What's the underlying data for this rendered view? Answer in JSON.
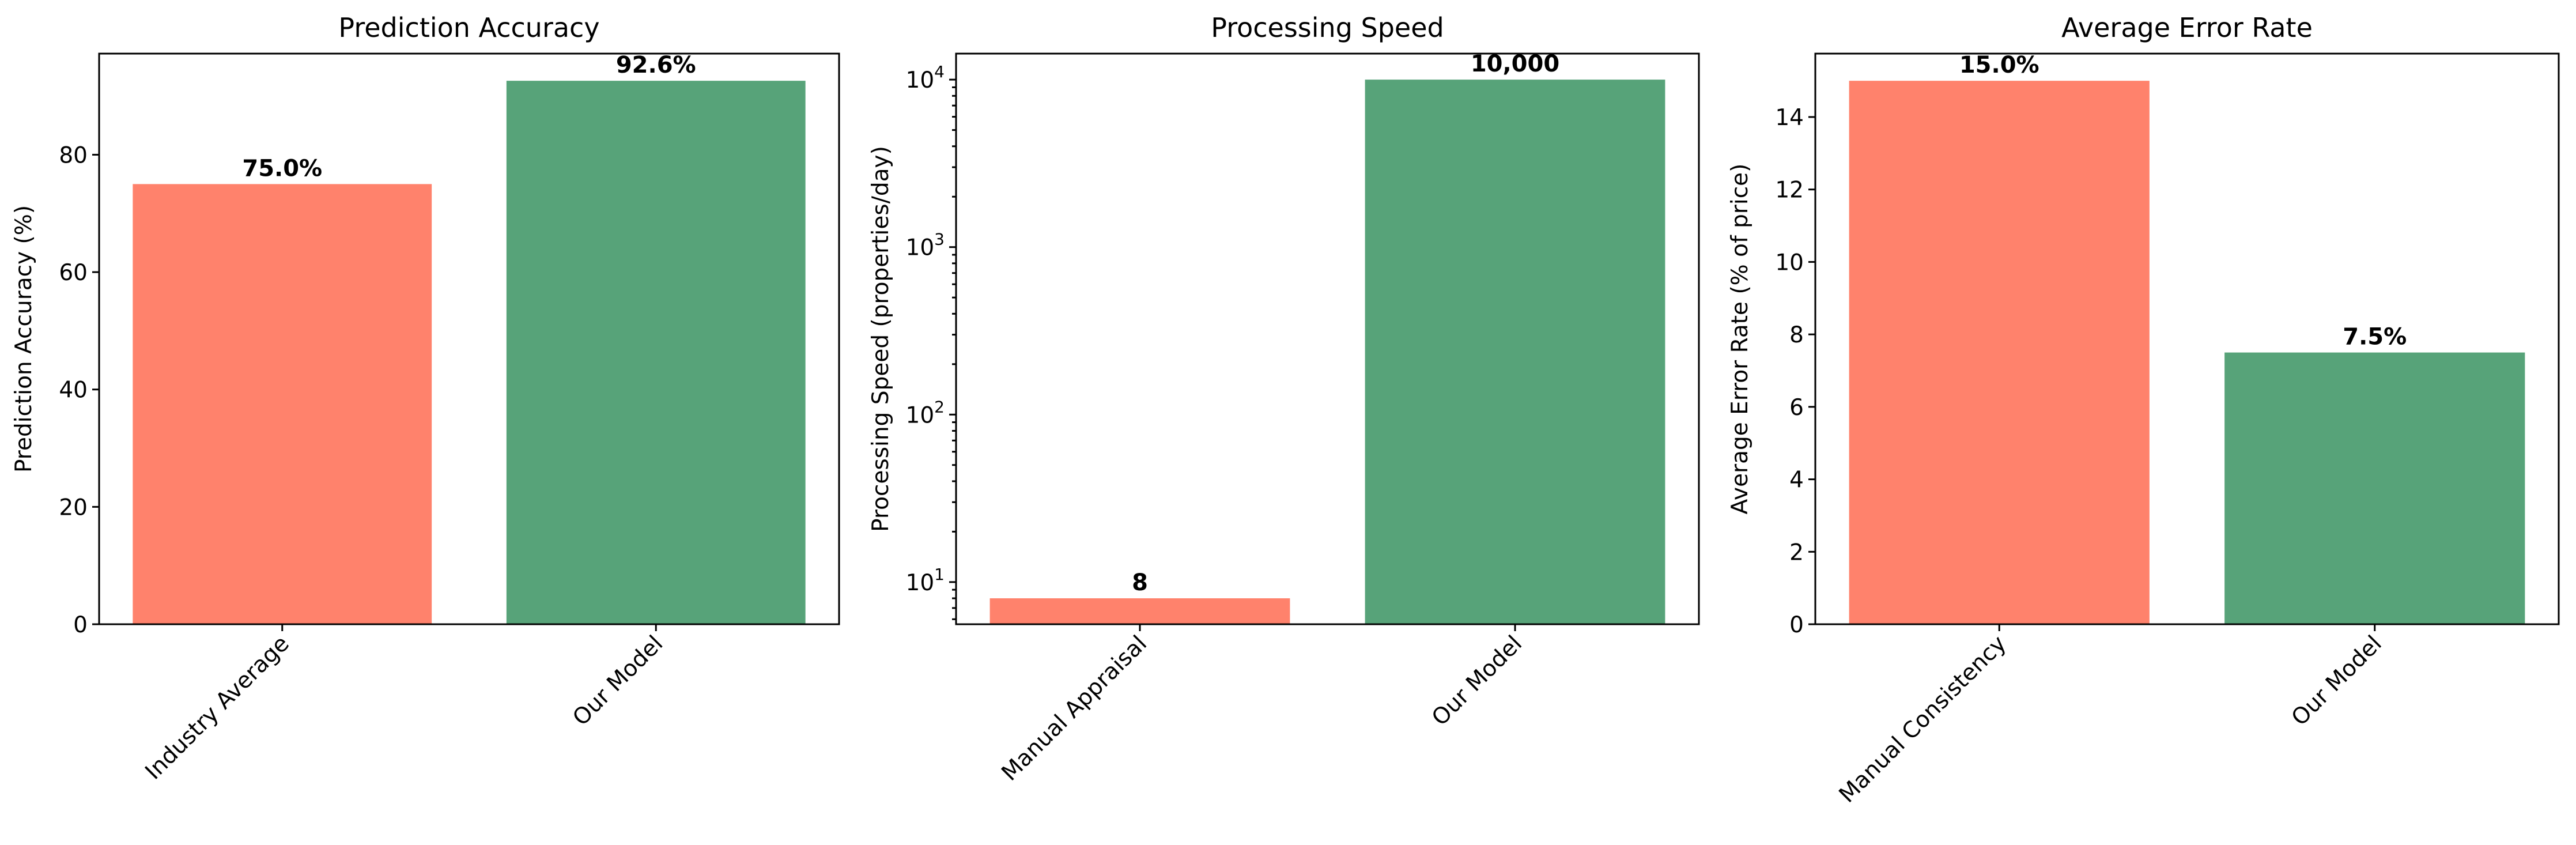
{
  "chart_data": [
    {
      "type": "bar",
      "title": "Prediction Accuracy",
      "ylabel": "Prediction Accuracy (%)",
      "categories": [
        "Industry Average",
        "Our Model"
      ],
      "values": [
        75.0,
        92.6
      ],
      "data_labels": [
        "75.0%",
        "92.6%"
      ],
      "colors": [
        "#ff826c",
        "#57a379"
      ],
      "yscale": "linear",
      "ylim": [
        0,
        97.23
      ],
      "yticks": [
        0,
        20,
        40,
        60,
        80
      ],
      "ytick_labels": [
        "0",
        "20",
        "40",
        "60",
        "80"
      ],
      "grid": false,
      "legend": "none"
    },
    {
      "type": "bar",
      "title": "Processing Speed",
      "ylabel": "Processing Speed (properties/day)",
      "categories": [
        "Manual Appraisal",
        "Our Model"
      ],
      "values": [
        8,
        10000
      ],
      "data_labels": [
        "8",
        "10,000"
      ],
      "colors": [
        "#ff826c",
        "#57a379"
      ],
      "yscale": "log",
      "ylim": [
        5.6,
        14300
      ],
      "yticks": [
        10,
        100,
        1000,
        10000
      ],
      "ytick_labels": [
        "10^1",
        "10^2",
        "10^3",
        "10^4"
      ],
      "grid": false,
      "legend": "none"
    },
    {
      "type": "bar",
      "title": "Average Error Rate",
      "ylabel": "Average Error Rate (% of price)",
      "categories": [
        "Manual Consistency",
        "Our Model"
      ],
      "values": [
        15.0,
        7.5
      ],
      "data_labels": [
        "15.0%",
        "7.5%"
      ],
      "colors": [
        "#ff826c",
        "#57a379"
      ],
      "yscale": "linear",
      "ylim": [
        0,
        15.75
      ],
      "yticks": [
        0,
        2,
        4,
        6,
        8,
        10,
        12,
        14
      ],
      "ytick_labels": [
        "0",
        "2",
        "4",
        "6",
        "8",
        "10",
        "12",
        "14"
      ],
      "grid": false,
      "legend": "none"
    }
  ]
}
